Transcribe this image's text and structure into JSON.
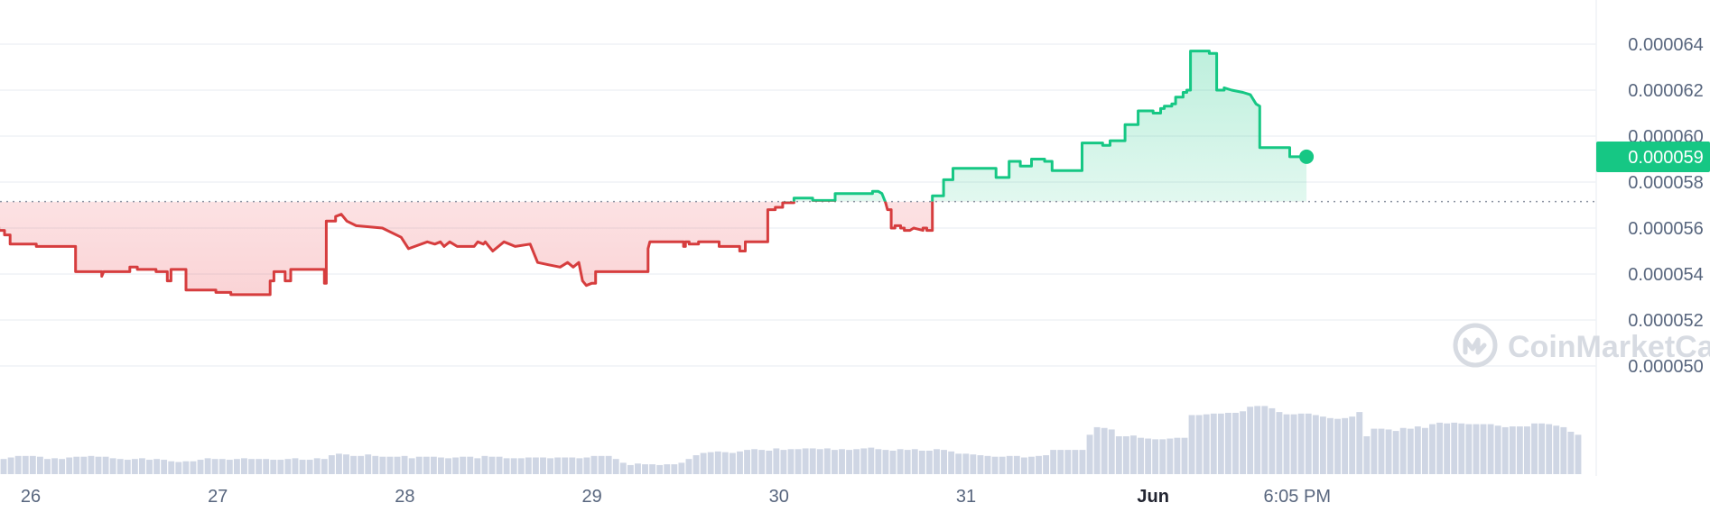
{
  "chart_data": {
    "type": "line",
    "title": "",
    "xlabel": "",
    "ylabel": "",
    "ylim": [
      4.91e-05,
      6.65e-05
    ],
    "y_ticks": [
      "0.000050",
      "0.000052",
      "0.000054",
      "0.000056",
      "0.000058",
      "0.000060",
      "0.000062",
      "0.000064"
    ],
    "x_ticks": [
      {
        "label": "26",
        "x": 26.0,
        "bold": false
      },
      {
        "label": "27",
        "x": 27.0,
        "bold": false
      },
      {
        "label": "28",
        "x": 28.0,
        "bold": false
      },
      {
        "label": "29",
        "x": 29.0,
        "bold": false
      },
      {
        "label": "30",
        "x": 30.0,
        "bold": false
      },
      {
        "label": "31",
        "x": 31.0,
        "bold": false
      },
      {
        "label": "Jun",
        "x": 32.0,
        "bold": true
      },
      {
        "label": "6:05 PM",
        "x": 32.77,
        "bold": false
      }
    ],
    "reference_price": 5.715e-05,
    "current_price_label": "0.000059",
    "grid": true,
    "colors": {
      "up": "#16c784",
      "down": "#d63d3e",
      "up_fill": "#16c784",
      "down_fill": "#ea3943",
      "grid": "#eff2f5",
      "volume": "#cfd6e4",
      "tag_bg": "#16c784"
    },
    "series": [
      {
        "x": [
          25.82,
          25.83,
          25.86,
          25.86,
          25.89,
          25.89,
          26.03,
          26.03,
          26.24,
          26.24,
          26.38,
          26.38,
          26.39,
          26.4,
          26.53,
          26.53,
          26.57,
          26.57,
          26.67,
          26.67,
          26.73,
          26.73,
          26.75,
          26.75,
          26.83,
          26.83,
          26.99,
          26.99,
          27.07,
          27.07,
          27.07,
          27.1,
          27.28,
          27.28,
          27.3,
          27.3,
          27.36,
          27.36,
          27.39,
          27.39,
          27.57,
          27.57,
          27.58,
          27.58,
          27.63,
          27.63,
          27.66,
          27.69,
          27.69,
          27.74,
          27.74,
          27.88,
          27.88,
          27.98,
          27.98,
          28.02,
          28.02,
          28.12,
          28.12,
          28.16,
          28.16,
          28.19,
          28.19,
          28.21,
          28.21,
          28.24,
          28.24,
          28.28,
          28.28,
          28.37,
          28.37,
          28.39,
          28.39,
          28.42,
          28.42,
          28.43,
          28.43,
          28.45,
          28.45,
          28.47,
          28.47,
          28.53,
          28.53,
          28.56,
          28.56,
          28.59,
          28.59,
          28.67,
          28.67,
          28.71,
          28.71,
          28.77,
          28.77,
          28.83,
          28.83,
          28.87,
          28.87,
          28.9,
          28.9,
          28.93,
          28.93,
          28.95,
          28.97,
          29.0,
          29.02,
          29.02,
          29.06,
          29.06,
          29.11,
          29.12,
          29.12,
          29.3,
          29.3,
          29.3,
          29.31,
          29.42,
          29.42,
          29.49,
          29.49,
          29.5,
          29.5,
          29.52,
          29.52,
          29.57,
          29.57,
          29.68,
          29.68,
          29.79,
          29.79,
          29.82,
          29.82,
          29.89,
          29.89,
          29.94,
          29.94,
          29.98,
          29.98,
          30.02,
          30.02,
          30.08,
          30.08,
          30.18,
          30.18,
          30.3,
          30.3,
          30.5,
          30.5,
          30.53,
          30.55,
          30.55,
          30.57,
          30.58,
          30.6,
          30.6,
          30.62,
          30.62,
          30.65,
          30.65,
          30.67,
          30.67,
          30.7,
          30.72,
          30.77,
          30.77,
          30.79,
          30.79,
          30.82,
          30.82,
          30.88,
          30.88,
          30.93,
          30.93,
          31.02,
          31.02,
          31.16,
          31.16,
          31.21,
          31.21,
          31.23,
          31.23,
          31.29,
          31.29,
          31.35,
          31.35,
          31.42,
          31.42,
          31.46,
          31.46,
          31.62,
          31.62,
          31.73,
          31.73,
          31.77,
          31.77,
          31.85,
          31.85,
          31.92,
          31.92,
          32.0,
          32.0,
          32.04,
          32.04,
          32.06,
          32.06,
          32.1,
          32.1,
          32.12,
          32.12,
          32.16,
          32.16,
          32.18,
          32.18,
          32.2,
          32.2,
          32.3,
          32.3,
          32.34,
          32.34,
          32.38,
          32.38,
          32.42,
          32.42,
          32.48,
          32.48,
          32.52,
          32.52,
          32.55,
          32.57,
          32.57,
          32.68,
          32.73,
          32.73,
          32.78,
          32.78,
          32.82
        ],
        "values": [
          5.72e-05,
          5.59e-05,
          5.59e-05,
          5.57e-05,
          5.57e-05,
          5.53e-05,
          5.53e-05,
          5.52e-05,
          5.52e-05,
          5.41e-05,
          5.41e-05,
          5.39e-05,
          5.41e-05,
          5.41e-05,
          5.41e-05,
          5.43e-05,
          5.43e-05,
          5.42e-05,
          5.42e-05,
          5.41e-05,
          5.41e-05,
          5.37e-05,
          5.37e-05,
          5.42e-05,
          5.42e-05,
          5.33e-05,
          5.33e-05,
          5.32e-05,
          5.32e-05,
          5.31e-05,
          5.31e-05,
          5.31e-05,
          5.31e-05,
          5.37e-05,
          5.37e-05,
          5.41e-05,
          5.41e-05,
          5.37e-05,
          5.37e-05,
          5.42e-05,
          5.42e-05,
          5.36e-05,
          5.36e-05,
          5.63e-05,
          5.63e-05,
          5.65e-05,
          5.66e-05,
          5.63e-05,
          5.63e-05,
          5.61e-05,
          5.61e-05,
          5.6e-05,
          5.6e-05,
          5.56e-05,
          5.56e-05,
          5.51e-05,
          5.51e-05,
          5.54e-05,
          5.54e-05,
          5.53e-05,
          5.53e-05,
          5.54e-05,
          5.54e-05,
          5.52e-05,
          5.52e-05,
          5.54e-05,
          5.54e-05,
          5.52e-05,
          5.52e-05,
          5.52e-05,
          5.52e-05,
          5.54e-05,
          5.54e-05,
          5.53e-05,
          5.53e-05,
          5.54e-05,
          5.54e-05,
          5.52e-05,
          5.52e-05,
          5.5e-05,
          5.5e-05,
          5.54e-05,
          5.54e-05,
          5.53e-05,
          5.53e-05,
          5.52e-05,
          5.52e-05,
          5.53e-05,
          5.53e-05,
          5.45e-05,
          5.45e-05,
          5.44e-05,
          5.44e-05,
          5.43e-05,
          5.43e-05,
          5.45e-05,
          5.45e-05,
          5.43e-05,
          5.43e-05,
          5.45e-05,
          5.45e-05,
          5.37e-05,
          5.35e-05,
          5.36e-05,
          5.36e-05,
          5.41e-05,
          5.41e-05,
          5.41e-05,
          5.41e-05,
          5.41e-05,
          5.41e-05,
          5.41e-05,
          5.41e-05,
          5.51e-05,
          5.54e-05,
          5.54e-05,
          5.54e-05,
          5.54e-05,
          5.52e-05,
          5.52e-05,
          5.54e-05,
          5.54e-05,
          5.53e-05,
          5.53e-05,
          5.54e-05,
          5.54e-05,
          5.52e-05,
          5.52e-05,
          5.5e-05,
          5.5e-05,
          5.54e-05,
          5.54e-05,
          5.54e-05,
          5.54e-05,
          5.68e-05,
          5.68e-05,
          5.69e-05,
          5.69e-05,
          5.71e-05,
          5.71e-05,
          5.73e-05,
          5.73e-05,
          5.72e-05,
          5.72e-05,
          5.75e-05,
          5.75e-05,
          5.76e-05,
          5.76e-05,
          5.75e-05,
          5.75e-05,
          5.71e-05,
          5.68e-05,
          5.68e-05,
          5.6e-05,
          5.6e-05,
          5.61e-05,
          5.61e-05,
          5.6e-05,
          5.6e-05,
          5.59e-05,
          5.59e-05,
          5.6e-05,
          5.59e-05,
          5.6e-05,
          5.6e-05,
          5.59e-05,
          5.59e-05,
          5.74e-05,
          5.74e-05,
          5.81e-05,
          5.81e-05,
          5.86e-05,
          5.86e-05,
          5.86e-05,
          5.86e-05,
          5.82e-05,
          5.82e-05,
          5.82e-05,
          5.82e-05,
          5.89e-05,
          5.89e-05,
          5.87e-05,
          5.87e-05,
          5.9e-05,
          5.9e-05,
          5.89e-05,
          5.89e-05,
          5.85e-05,
          5.85e-05,
          5.97e-05,
          5.97e-05,
          5.96e-05,
          5.96e-05,
          5.98e-05,
          5.98e-05,
          6.05e-05,
          6.05e-05,
          6.11e-05,
          6.11e-05,
          6.1e-05,
          6.1e-05,
          6.12e-05,
          6.12e-05,
          6.13e-05,
          6.13e-05,
          6.14e-05,
          6.14e-05,
          6.17e-05,
          6.17e-05,
          6.19e-05,
          6.19e-05,
          6.2e-05,
          6.2e-05,
          6.37e-05,
          6.37e-05,
          6.36e-05,
          6.36e-05,
          6.2e-05,
          6.2e-05,
          6.21e-05,
          6.2e-05,
          6.2e-05,
          6.19e-05,
          6.19e-05,
          6.18e-05,
          6.18e-05,
          6.14e-05,
          6.13e-05,
          5.95e-05,
          5.95e-05,
          5.95e-05,
          5.91e-05,
          5.91e-05,
          5.91e-05,
          5.91e-05
        ]
      }
    ],
    "volume": [
      0.2,
      0.22,
      0.24,
      0.24,
      0.24,
      0.23,
      0.2,
      0.21,
      0.2,
      0.22,
      0.23,
      0.23,
      0.24,
      0.23,
      0.23,
      0.21,
      0.2,
      0.19,
      0.2,
      0.21,
      0.19,
      0.2,
      0.19,
      0.17,
      0.16,
      0.17,
      0.17,
      0.19,
      0.21,
      0.2,
      0.2,
      0.19,
      0.2,
      0.21,
      0.2,
      0.2,
      0.2,
      0.19,
      0.19,
      0.2,
      0.21,
      0.19,
      0.19,
      0.21,
      0.2,
      0.25,
      0.27,
      0.26,
      0.24,
      0.24,
      0.26,
      0.24,
      0.23,
      0.23,
      0.23,
      0.24,
      0.21,
      0.23,
      0.23,
      0.23,
      0.22,
      0.21,
      0.22,
      0.23,
      0.23,
      0.21,
      0.24,
      0.23,
      0.23,
      0.21,
      0.21,
      0.21,
      0.22,
      0.22,
      0.22,
      0.21,
      0.22,
      0.22,
      0.22,
      0.21,
      0.22,
      0.24,
      0.24,
      0.24,
      0.2,
      0.15,
      0.12,
      0.14,
      0.13,
      0.13,
      0.12,
      0.13,
      0.13,
      0.15,
      0.2,
      0.25,
      0.28,
      0.29,
      0.3,
      0.29,
      0.28,
      0.3,
      0.32,
      0.33,
      0.32,
      0.31,
      0.34,
      0.32,
      0.33,
      0.33,
      0.34,
      0.34,
      0.33,
      0.34,
      0.32,
      0.33,
      0.32,
      0.33,
      0.34,
      0.35,
      0.33,
      0.32,
      0.31,
      0.33,
      0.32,
      0.33,
      0.31,
      0.31,
      0.33,
      0.32,
      0.3,
      0.27,
      0.27,
      0.26,
      0.25,
      0.24,
      0.23,
      0.23,
      0.24,
      0.24,
      0.22,
      0.23,
      0.24,
      0.25,
      0.32,
      0.32,
      0.32,
      0.32,
      0.32,
      0.52,
      0.62,
      0.61,
      0.59,
      0.5,
      0.5,
      0.51,
      0.48,
      0.47,
      0.46,
      0.46,
      0.47,
      0.48,
      0.48,
      0.78,
      0.78,
      0.79,
      0.8,
      0.8,
      0.81,
      0.81,
      0.83,
      0.89,
      0.9,
      0.9,
      0.87,
      0.82,
      0.79,
      0.79,
      0.8,
      0.8,
      0.78,
      0.76,
      0.74,
      0.73,
      0.74,
      0.76,
      0.82,
      0.5,
      0.6,
      0.6,
      0.59,
      0.57,
      0.61,
      0.6,
      0.63,
      0.61,
      0.66,
      0.68,
      0.67,
      0.68,
      0.67,
      0.66,
      0.66,
      0.66,
      0.66,
      0.64,
      0.62,
      0.63,
      0.63,
      0.63,
      0.67,
      0.67,
      0.66,
      0.64,
      0.62,
      0.56,
      0.52
    ],
    "watermark": "CoinMarketCap"
  }
}
